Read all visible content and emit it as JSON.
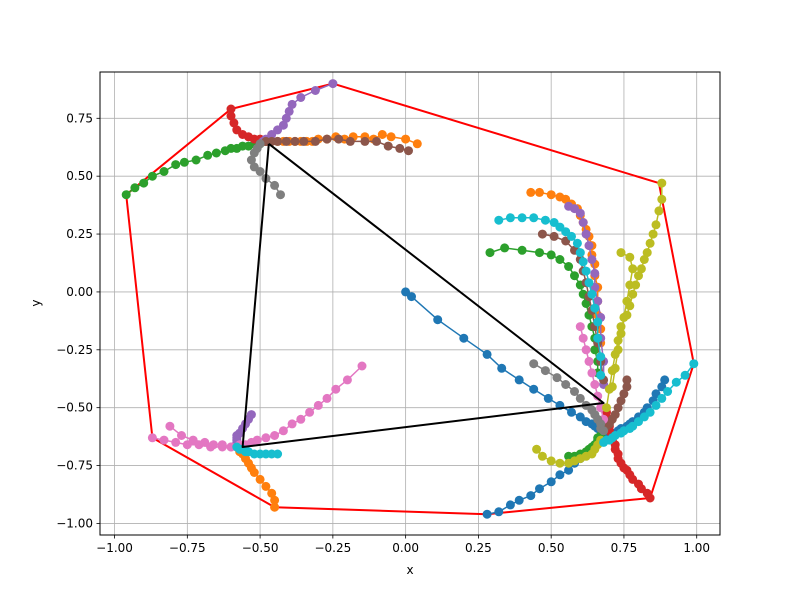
{
  "chart_data": {
    "type": "line",
    "title": "",
    "xlabel": "x",
    "ylabel": "y",
    "xlim": [
      -1.05,
      1.08
    ],
    "ylim": [
      -1.05,
      0.95
    ],
    "xticks": [
      -1.0,
      -0.75,
      -0.5,
      -0.25,
      0.0,
      0.25,
      0.5,
      0.75,
      1.0
    ],
    "yticks": [
      -1.0,
      -0.75,
      -0.5,
      -0.25,
      0.0,
      0.25,
      0.5,
      0.75
    ],
    "xtick_labels": [
      "−1.00",
      "−0.75",
      "−0.50",
      "−0.25",
      "0.00",
      "0.25",
      "0.50",
      "0.75",
      "1.00"
    ],
    "ytick_labels": [
      "−1.00",
      "−0.75",
      "−0.50",
      "−0.25",
      "0.00",
      "0.25",
      "0.50",
      "0.75"
    ],
    "grid": true,
    "legend": false,
    "series": [
      {
        "color": "#1f77b4",
        "x": [
          0.0,
          0.02,
          0.11,
          0.2,
          0.28,
          0.33,
          0.39,
          0.44,
          0.49,
          0.53,
          0.57,
          0.6,
          0.62,
          0.64,
          0.65,
          0.66,
          0.67,
          0.68
        ],
        "y": [
          0.0,
          -0.02,
          -0.12,
          -0.2,
          -0.27,
          -0.33,
          -0.38,
          -0.42,
          -0.46,
          -0.49,
          -0.52,
          -0.54,
          -0.56,
          -0.57,
          -0.58,
          -0.59,
          -0.6,
          -0.6
        ]
      },
      {
        "color": "#1f77b4",
        "x": [
          0.28,
          0.32,
          0.36,
          0.39,
          0.43,
          0.46,
          0.5,
          0.53,
          0.56,
          0.58,
          0.6,
          0.62,
          0.64,
          0.65,
          0.66,
          0.67,
          0.68
        ],
        "y": [
          -0.96,
          -0.95,
          -0.92,
          -0.9,
          -0.88,
          -0.85,
          -0.82,
          -0.79,
          -0.77,
          -0.74,
          -0.72,
          -0.7,
          -0.68,
          -0.66,
          -0.65,
          -0.63,
          -0.62
        ]
      },
      {
        "color": "#1f77b4",
        "x": [
          0.89,
          0.88,
          0.86,
          0.85,
          0.83,
          0.82,
          0.8,
          0.78,
          0.77,
          0.76,
          0.74,
          0.73,
          0.72,
          0.71,
          0.7,
          0.69
        ],
        "y": [
          -0.38,
          -0.41,
          -0.44,
          -0.47,
          -0.5,
          -0.52,
          -0.54,
          -0.56,
          -0.57,
          -0.58,
          -0.59,
          -0.6,
          -0.61,
          -0.61,
          -0.62,
          -0.62
        ]
      },
      {
        "color": "#ff7f0e",
        "x": [
          0.04,
          0.0,
          -0.05,
          -0.08,
          -0.11,
          -0.14,
          -0.18,
          -0.21,
          -0.24,
          -0.27,
          -0.3,
          -0.32,
          -0.34,
          -0.36,
          -0.38,
          -0.4,
          -0.42,
          -0.44,
          -0.46,
          -0.48
        ],
        "y": [
          0.64,
          0.66,
          0.67,
          0.68,
          0.66,
          0.67,
          0.67,
          0.66,
          0.67,
          0.66,
          0.66,
          0.65,
          0.65,
          0.65,
          0.65,
          0.65,
          0.65,
          0.65,
          0.65,
          0.65
        ]
      },
      {
        "color": "#ff7f0e",
        "x": [
          -0.45,
          -0.45,
          -0.46,
          -0.48,
          -0.5,
          -0.52,
          -0.53,
          -0.54,
          -0.55,
          -0.56,
          -0.57,
          -0.58
        ],
        "y": [
          -0.93,
          -0.9,
          -0.87,
          -0.84,
          -0.81,
          -0.78,
          -0.76,
          -0.74,
          -0.72,
          -0.7,
          -0.69,
          -0.67
        ]
      },
      {
        "color": "#ff7f0e",
        "x": [
          0.43,
          0.46,
          0.5,
          0.53,
          0.55,
          0.57,
          0.59,
          0.6,
          0.61,
          0.62,
          0.63,
          0.64,
          0.64,
          0.65,
          0.65,
          0.66,
          0.66,
          0.66,
          0.67,
          0.67
        ],
        "y": [
          0.43,
          0.43,
          0.42,
          0.41,
          0.4,
          0.38,
          0.36,
          0.33,
          0.3,
          0.27,
          0.24,
          0.2,
          0.16,
          0.12,
          0.07,
          0.02,
          -0.04,
          -0.1,
          -0.16,
          -0.22
        ]
      },
      {
        "color": "#2ca02c",
        "x": [
          -0.96,
          -0.93,
          -0.9,
          -0.87,
          -0.83,
          -0.79,
          -0.76,
          -0.72,
          -0.68,
          -0.65,
          -0.62,
          -0.6,
          -0.58,
          -0.56,
          -0.54,
          -0.52,
          -0.5,
          -0.48
        ],
        "y": [
          0.42,
          0.45,
          0.47,
          0.5,
          0.52,
          0.55,
          0.56,
          0.57,
          0.59,
          0.6,
          0.61,
          0.62,
          0.62,
          0.63,
          0.63,
          0.64,
          0.64,
          0.65
        ]
      },
      {
        "color": "#2ca02c",
        "x": [
          0.29,
          0.34,
          0.4,
          0.46,
          0.5,
          0.53,
          0.56,
          0.58,
          0.6,
          0.61,
          0.62,
          0.63,
          0.64,
          0.65,
          0.65,
          0.66,
          0.66
        ],
        "y": [
          0.17,
          0.19,
          0.18,
          0.17,
          0.16,
          0.14,
          0.11,
          0.07,
          0.03,
          -0.01,
          -0.05,
          -0.1,
          -0.15,
          -0.2,
          -0.25,
          -0.3,
          -0.35
        ]
      },
      {
        "color": "#2ca02c",
        "x": [
          0.56,
          0.58,
          0.6,
          0.62,
          0.63,
          0.64,
          0.65,
          0.66,
          0.66,
          0.67
        ],
        "y": [
          -0.71,
          -0.71,
          -0.7,
          -0.69,
          -0.68,
          -0.67,
          -0.66,
          -0.64,
          -0.63,
          -0.62
        ]
      },
      {
        "color": "#d62728",
        "x": [
          -0.6,
          -0.6,
          -0.59,
          -0.58,
          -0.56,
          -0.54,
          -0.52,
          -0.5,
          -0.48
        ],
        "y": [
          0.79,
          0.76,
          0.73,
          0.7,
          0.68,
          0.67,
          0.66,
          0.66,
          0.65
        ]
      },
      {
        "color": "#d62728",
        "x": [
          0.84,
          0.83,
          0.81,
          0.8,
          0.78,
          0.77,
          0.76,
          0.75,
          0.74,
          0.73,
          0.73,
          0.72,
          0.72,
          0.71,
          0.71,
          0.7,
          0.7,
          0.7,
          0.69,
          0.69
        ],
        "y": [
          -0.89,
          -0.87,
          -0.85,
          -0.83,
          -0.81,
          -0.79,
          -0.77,
          -0.76,
          -0.74,
          -0.72,
          -0.7,
          -0.68,
          -0.66,
          -0.64,
          -0.62,
          -0.6,
          -0.58,
          -0.56,
          -0.54,
          -0.52
        ]
      },
      {
        "color": "#9467bd",
        "x": [
          -0.25,
          -0.31,
          -0.36,
          -0.39,
          -0.4,
          -0.41,
          -0.42,
          -0.44,
          -0.46,
          -0.48,
          -0.49
        ],
        "y": [
          0.9,
          0.87,
          0.84,
          0.81,
          0.78,
          0.75,
          0.72,
          0.7,
          0.68,
          0.66,
          0.65
        ]
      },
      {
        "color": "#9467bd",
        "x": [
          -0.53,
          -0.54,
          -0.55,
          -0.56,
          -0.57,
          -0.58,
          -0.58,
          -0.58,
          -0.58
        ],
        "y": [
          -0.53,
          -0.55,
          -0.57,
          -0.59,
          -0.61,
          -0.62,
          -0.63,
          -0.64,
          -0.65
        ]
      },
      {
        "color": "#9467bd",
        "x": [
          0.56,
          0.58,
          0.6,
          0.61,
          0.62,
          0.63,
          0.64,
          0.65,
          0.65,
          0.66,
          0.67,
          0.67,
          0.68,
          0.68
        ],
        "y": [
          0.37,
          0.36,
          0.34,
          0.3,
          0.25,
          0.2,
          0.14,
          0.08,
          0.02,
          -0.04,
          -0.11,
          -0.2,
          -0.3,
          -0.4
        ]
      },
      {
        "color": "#8c564b",
        "x": [
          0.01,
          -0.02,
          -0.06,
          -0.1,
          -0.14,
          -0.19,
          -0.23,
          -0.27,
          -0.31,
          -0.35,
          -0.38,
          -0.41,
          -0.44,
          -0.46,
          -0.48
        ],
        "y": [
          0.61,
          0.62,
          0.63,
          0.65,
          0.65,
          0.65,
          0.66,
          0.66,
          0.65,
          0.65,
          0.65,
          0.65,
          0.65,
          0.65,
          0.65
        ]
      },
      {
        "color": "#8c564b",
        "x": [
          0.47,
          0.51,
          0.55,
          0.58,
          0.6,
          0.61,
          0.62,
          0.63,
          0.64,
          0.65,
          0.66,
          0.67,
          0.68
        ],
        "y": [
          0.25,
          0.24,
          0.22,
          0.18,
          0.14,
          0.09,
          0.04,
          -0.02,
          -0.08,
          -0.15,
          -0.22,
          -0.3,
          -0.38
        ]
      },
      {
        "color": "#8c564b",
        "x": [
          0.76,
          0.76,
          0.75,
          0.74,
          0.73,
          0.72,
          0.71,
          0.7,
          0.69
        ],
        "y": [
          -0.38,
          -0.41,
          -0.44,
          -0.47,
          -0.5,
          -0.53,
          -0.55,
          -0.57,
          -0.58
        ]
      },
      {
        "color": "#e377c2",
        "x": [
          -0.15,
          -0.2,
          -0.24,
          -0.27,
          -0.3,
          -0.33,
          -0.36,
          -0.39,
          -0.42,
          -0.45,
          -0.48,
          -0.51,
          -0.53,
          -0.55,
          -0.57,
          -0.58
        ],
        "y": [
          -0.32,
          -0.38,
          -0.42,
          -0.46,
          -0.49,
          -0.52,
          -0.55,
          -0.57,
          -0.6,
          -0.62,
          -0.63,
          -0.64,
          -0.65,
          -0.66,
          -0.66,
          -0.67
        ]
      },
      {
        "color": "#e377c2",
        "x": [
          -0.81,
          -0.77,
          -0.73,
          -0.69,
          -0.66,
          -0.63,
          -0.6,
          -0.58
        ],
        "y": [
          -0.58,
          -0.62,
          -0.64,
          -0.65,
          -0.66,
          -0.66,
          -0.67,
          -0.67
        ]
      },
      {
        "color": "#e377c2",
        "x": [
          -0.87,
          -0.83,
          -0.79,
          -0.75,
          -0.71,
          -0.67,
          -0.63,
          -0.6,
          -0.57
        ],
        "y": [
          -0.63,
          -0.64,
          -0.65,
          -0.66,
          -0.66,
          -0.67,
          -0.67,
          -0.67,
          -0.67
        ]
      },
      {
        "color": "#e377c2",
        "x": [
          0.6,
          0.61,
          0.62,
          0.63,
          0.64,
          0.65,
          0.66,
          0.67,
          0.68
        ],
        "y": [
          -0.15,
          -0.2,
          -0.25,
          -0.3,
          -0.35,
          -0.4,
          -0.45,
          -0.5,
          -0.55
        ]
      },
      {
        "color": "#7f7f7f",
        "x": [
          -0.43,
          -0.45,
          -0.48,
          -0.5,
          -0.52,
          -0.53,
          -0.52,
          -0.51,
          -0.5
        ],
        "y": [
          0.42,
          0.46,
          0.49,
          0.52,
          0.54,
          0.57,
          0.6,
          0.62,
          0.64
        ]
      },
      {
        "color": "#7f7f7f",
        "x": [
          0.44,
          0.48,
          0.52,
          0.55,
          0.58,
          0.6,
          0.62,
          0.64,
          0.65,
          0.66,
          0.67,
          0.67,
          0.68
        ],
        "y": [
          -0.31,
          -0.34,
          -0.37,
          -0.4,
          -0.43,
          -0.46,
          -0.49,
          -0.51,
          -0.53,
          -0.55,
          -0.57,
          -0.59,
          -0.6
        ]
      },
      {
        "color": "#bcbd22",
        "x": [
          0.88,
          0.88,
          0.87,
          0.86,
          0.85,
          0.84,
          0.83,
          0.82,
          0.81,
          0.8,
          0.79,
          0.78,
          0.77,
          0.76,
          0.74,
          0.73,
          0.72,
          0.71,
          0.7,
          0.69
        ],
        "y": [
          0.47,
          0.4,
          0.35,
          0.29,
          0.25,
          0.21,
          0.17,
          0.14,
          0.1,
          0.07,
          0.03,
          -0.01,
          -0.06,
          -0.1,
          -0.15,
          -0.21,
          -0.27,
          -0.34,
          -0.42,
          -0.5
        ]
      },
      {
        "color": "#bcbd22",
        "x": [
          0.74,
          0.77,
          0.78,
          0.77,
          0.76,
          0.75,
          0.74,
          0.73,
          0.72,
          0.71
        ],
        "y": [
          0.17,
          0.15,
          0.1,
          0.03,
          -0.04,
          -0.11,
          -0.18,
          -0.25,
          -0.33,
          -0.41
        ]
      },
      {
        "color": "#bcbd22",
        "x": [
          0.45,
          0.47,
          0.5,
          0.53,
          0.56,
          0.58,
          0.6,
          0.62,
          0.64,
          0.65,
          0.66,
          0.67
        ],
        "y": [
          -0.68,
          -0.71,
          -0.73,
          -0.74,
          -0.74,
          -0.73,
          -0.72,
          -0.71,
          -0.7,
          -0.68,
          -0.66,
          -0.64
        ]
      },
      {
        "color": "#17becf",
        "x": [
          0.32,
          0.36,
          0.4,
          0.44,
          0.48,
          0.51,
          0.53,
          0.55,
          0.57,
          0.59,
          0.6,
          0.61,
          0.62,
          0.63,
          0.64,
          0.65,
          0.66,
          0.66,
          0.67,
          0.67
        ],
        "y": [
          0.31,
          0.32,
          0.32,
          0.32,
          0.31,
          0.3,
          0.28,
          0.26,
          0.24,
          0.21,
          0.17,
          0.13,
          0.09,
          0.04,
          -0.01,
          -0.07,
          -0.13,
          -0.2,
          -0.28,
          -0.36
        ]
      },
      {
        "color": "#17becf",
        "x": [
          0.99,
          0.96,
          0.93,
          0.9,
          0.88,
          0.86,
          0.84,
          0.82,
          0.8,
          0.78,
          0.77,
          0.75,
          0.74,
          0.72,
          0.71,
          0.7,
          0.69,
          0.68
        ],
        "y": [
          -0.31,
          -0.36,
          -0.39,
          -0.43,
          -0.46,
          -0.49,
          -0.52,
          -0.54,
          -0.56,
          -0.58,
          -0.59,
          -0.6,
          -0.61,
          -0.62,
          -0.63,
          -0.64,
          -0.64,
          -0.65
        ]
      },
      {
        "color": "#17becf",
        "x": [
          -0.44,
          -0.46,
          -0.48,
          -0.5,
          -0.52,
          -0.54,
          -0.55,
          -0.56,
          -0.57,
          -0.58
        ],
        "y": [
          -0.7,
          -0.7,
          -0.7,
          -0.7,
          -0.7,
          -0.69,
          -0.69,
          -0.68,
          -0.68,
          -0.67
        ]
      }
    ],
    "hull": {
      "color": "#ff0000",
      "x": [
        -0.96,
        -0.6,
        -0.25,
        0.87,
        0.99,
        0.84,
        0.28,
        -0.45,
        -0.87,
        -0.96
      ],
      "y": [
        0.42,
        0.79,
        0.9,
        0.47,
        -0.31,
        -0.89,
        -0.96,
        -0.93,
        -0.63,
        0.42
      ]
    },
    "triangle": {
      "color": "#000000",
      "x": [
        -0.47,
        0.68,
        -0.56,
        -0.47
      ],
      "y": [
        0.64,
        -0.48,
        -0.67,
        0.64
      ]
    }
  }
}
